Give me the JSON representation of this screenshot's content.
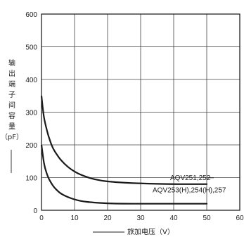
{
  "chart_data": {
    "type": "line",
    "xlabel": "旅加电压（V）",
    "ylabel_chars": [
      "输",
      "出",
      "端",
      "子",
      "间",
      "容",
      "量",
      "（pF）"
    ],
    "xlim": [
      0,
      60
    ],
    "ylim": [
      0,
      600
    ],
    "xticks": [
      "0",
      "10",
      "20",
      "30",
      "40",
      "50",
      "60"
    ],
    "yticks": [
      "0",
      "100",
      "200",
      "300",
      "400",
      "500",
      "600"
    ],
    "grid": true,
    "series": [
      {
        "name": "AQV251,252",
        "x": [
          0,
          0.5,
          1,
          2,
          3,
          4,
          5,
          6,
          8,
          10,
          12,
          15,
          18,
          20,
          25,
          30,
          35,
          40,
          45,
          50
        ],
        "values": [
          350,
          300,
          270,
          230,
          200,
          180,
          165,
          152,
          132,
          118,
          108,
          97,
          91,
          88,
          84,
          82,
          81,
          80,
          80,
          80
        ]
      },
      {
        "name": "AQV253(H),254(H),257",
        "x": [
          0,
          0.5,
          1,
          2,
          3,
          4,
          5,
          6,
          8,
          10,
          12,
          15,
          20,
          25,
          30,
          35,
          40,
          45,
          50
        ],
        "values": [
          200,
          160,
          130,
          100,
          82,
          68,
          58,
          50,
          40,
          33,
          28,
          24,
          21,
          20,
          20,
          20,
          20,
          20,
          20
        ]
      }
    ]
  }
}
